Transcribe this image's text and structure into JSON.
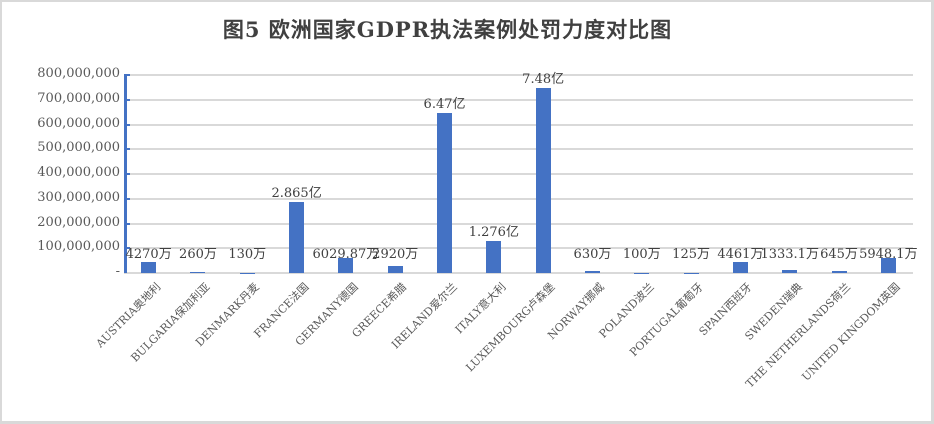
{
  "chart_data": {
    "type": "bar",
    "title": "图5 欧洲国家GDPR执法案例处罚力度对比图",
    "xlabel": "",
    "ylabel": "",
    "ylim": [
      0,
      800000000
    ],
    "yticks": [
      "-",
      "100,000,000",
      "200,000,000",
      "300,000,000",
      "400,000,000",
      "500,000,000",
      "600,000,000",
      "700,000,000",
      "800,000,000"
    ],
    "grid": true,
    "legend": "none",
    "categories": [
      "AUSTRIA奥地利",
      "BULGARIA保加利亚",
      "DENMARK丹麦",
      "FRANCE法国",
      "GERMANY德国",
      "GREECE希腊",
      "IRELAND爱尔兰",
      "ITALY意大利",
      "LUXEMBOURG卢森堡",
      "NORWAY挪威",
      "POLAND波兰",
      "PORTUGAL葡萄牙",
      "SPAIN西班牙",
      "SWEDEN瑞典",
      "THE NETHERLANDS荷兰",
      "UNITED KINGDOM英国"
    ],
    "values": [
      42700000,
      2600000,
      1300000,
      286500000,
      60298700,
      29200000,
      647000000,
      127600000,
      748000000,
      6300000,
      1000000,
      1250000,
      44610000,
      13331000,
      6450000,
      59481000
    ],
    "data_labels": [
      "4270万",
      "260万",
      "130万",
      "2.865亿",
      "6029.87万",
      "2920万",
      "6.47亿",
      "1.276亿",
      "7.48亿",
      "630万",
      "100万",
      "125万",
      "4461万",
      "1333.1万",
      "645万",
      "5948.1万"
    ],
    "bar_color": "#4472c4"
  }
}
